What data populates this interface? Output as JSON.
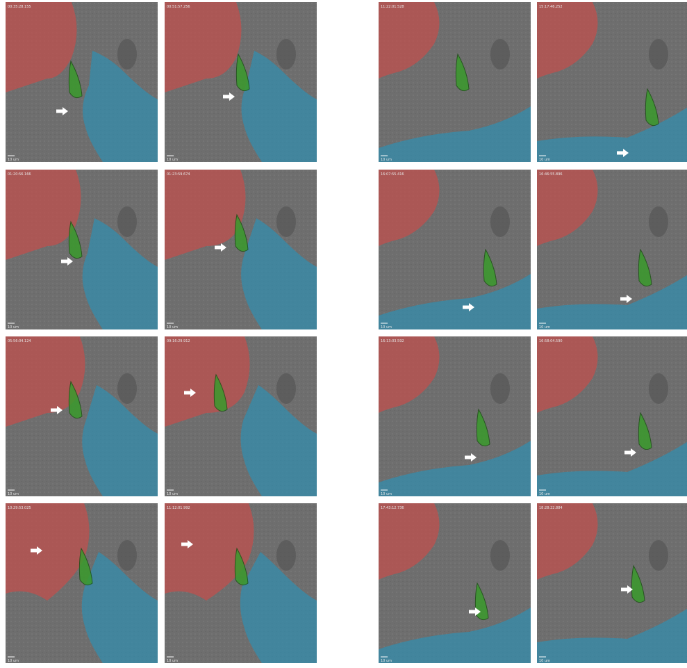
{
  "panels": [
    {
      "timestamp": "00:35:28.155",
      "scale": "10 um"
    },
    {
      "timestamp": "00:51:57.256",
      "scale": "10 um"
    },
    {
      "timestamp": "01:20:56.166",
      "scale": "10 um"
    },
    {
      "timestamp": "01:23:59.674",
      "scale": "10 um"
    },
    {
      "timestamp": "05:56:04.124",
      "scale": "10 um"
    },
    {
      "timestamp": "09:16:29.912",
      "scale": "10 um"
    },
    {
      "timestamp": "10:29:53.025",
      "scale": "10 um"
    },
    {
      "timestamp": "11:12:01.992",
      "scale": "10 um"
    },
    {
      "timestamp": "11:22:01.528",
      "scale": "10 um"
    },
    {
      "timestamp": "15:17:46.252",
      "scale": "10 um"
    },
    {
      "timestamp": "16:07:55.416",
      "scale": "10 um"
    },
    {
      "timestamp": "16:46:55.896",
      "scale": "10 um"
    },
    {
      "timestamp": "16:13:03.592",
      "scale": "10 um"
    },
    {
      "timestamp": "16:58:04.590",
      "scale": "10 um"
    },
    {
      "timestamp": "17:43:12.736",
      "scale": "10 um"
    },
    {
      "timestamp": "18:28:22.884",
      "scale": "10 um"
    }
  ]
}
